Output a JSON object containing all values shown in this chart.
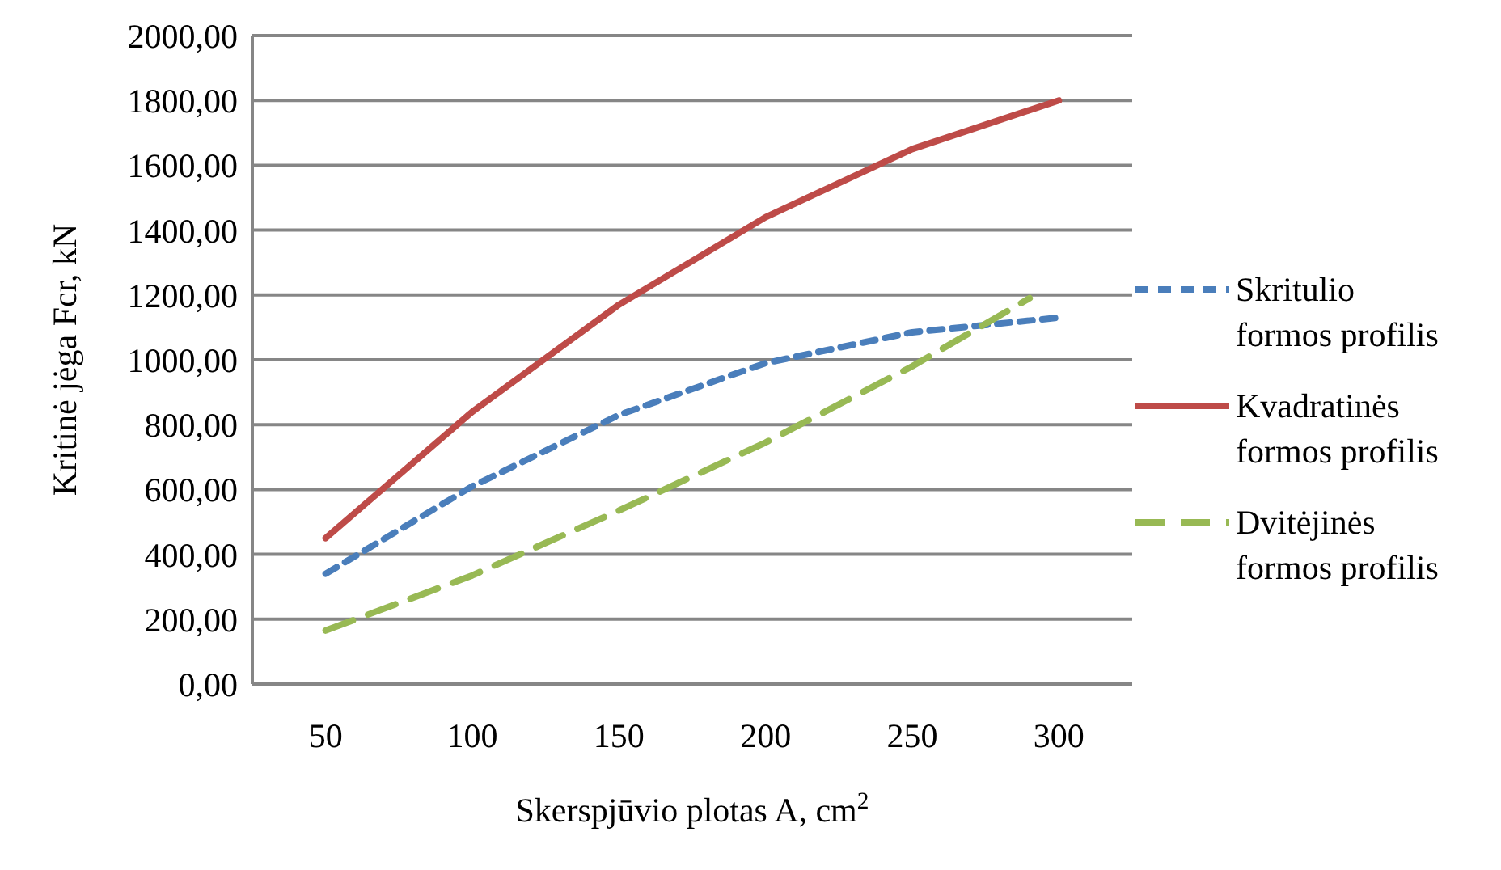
{
  "chart_data": {
    "type": "line",
    "xlabel": "Skerspjūvio plotas A, cm$^{2}$",
    "ylabel": "Kritinė jėga Fcr, kN",
    "x": [
      50,
      100,
      150,
      200,
      250,
      300
    ],
    "xlim": [
      25,
      325
    ],
    "xticks": [
      50,
      100,
      150,
      200,
      250,
      300
    ],
    "ylim": [
      0,
      2000
    ],
    "yticks": [
      {
        "value": 0,
        "label": "0,00"
      },
      {
        "value": 200,
        "label": "200,00"
      },
      {
        "value": 400,
        "label": "400,00"
      },
      {
        "value": 600,
        "label": "600,00"
      },
      {
        "value": 800,
        "label": "800,00"
      },
      {
        "value": 1000,
        "label": "1000,00"
      },
      {
        "value": 1200,
        "label": "1200,00"
      },
      {
        "value": 1400,
        "label": "1400,00"
      },
      {
        "value": 1600,
        "label": "1600,00"
      },
      {
        "value": 1800,
        "label": "1800,00"
      },
      {
        "value": 2000,
        "label": "2000,00"
      }
    ],
    "grid": "y",
    "legend": "right",
    "marker": "none",
    "series": [
      {
        "name": "Skritulio formos profilis",
        "color": "#4a7ebb",
        "line_style": "dotted",
        "values": [
          340,
          610,
          830,
          990,
          1085,
          1130
        ]
      },
      {
        "name": "Kvadratinės formos profilis",
        "color": "#be4b48",
        "line_style": "solid",
        "values": [
          450,
          840,
          1170,
          1440,
          1650,
          1800
        ]
      },
      {
        "name": "Dvitėjinės formos profilis",
        "color": "#98b954",
        "line_style": "dashed",
        "x": [
          50,
          100,
          150,
          200,
          250,
          290
        ],
        "values": [
          165,
          335,
          535,
          745,
          980,
          1190
        ]
      }
    ]
  }
}
